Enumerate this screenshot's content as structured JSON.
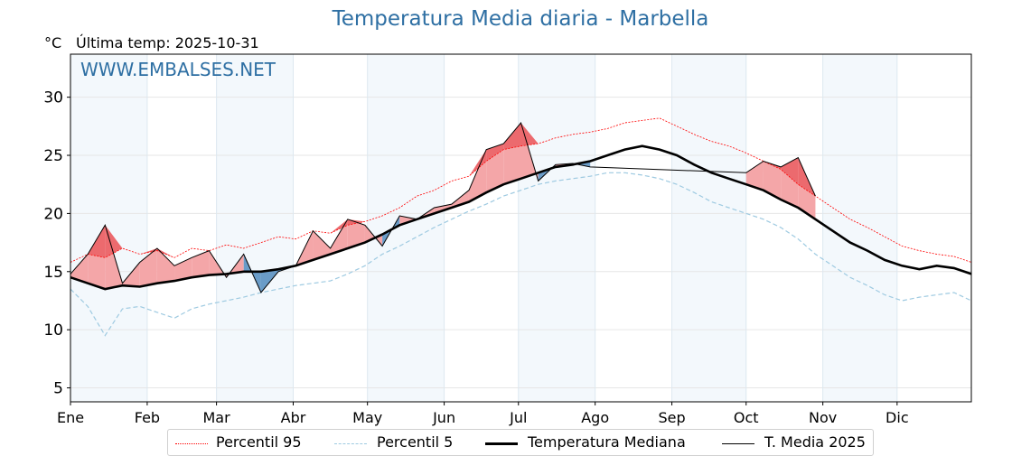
{
  "header": {
    "title": "Temperatura Media diaria - Marbella",
    "unit_label": "°C",
    "last_temp_label": "Última temp: 2025-10-31",
    "watermark": "WWW.EMBALSES.NET"
  },
  "legend": {
    "items": [
      {
        "label": "Percentil 95",
        "color": "#ff0000",
        "style": "dotted"
      },
      {
        "label": "Percentil 5",
        "color": "#9ecae1",
        "style": "dashed"
      },
      {
        "label": "Temperatura Mediana",
        "color": "#000000",
        "style": "solid-thick"
      },
      {
        "label": "T. Media 2025",
        "color": "#000000",
        "style": "solid-thin"
      }
    ]
  },
  "colors": {
    "title": "#2e6fa3",
    "above_median_fill": "#f4a6a8",
    "above_p95_fill": "#ec6a6e",
    "below_median_fill": "#6a9cc8",
    "month_band": "#f3f8fc",
    "grid": "#e6e6e6"
  },
  "chart_data": {
    "type": "line",
    "title": "Temperatura Media diaria - Marbella",
    "xlabel": "",
    "ylabel": "°C",
    "ylim": [
      3.8,
      33.7
    ],
    "xlim": [
      0,
      364
    ],
    "grid": true,
    "legend_position": "bottom",
    "yticks": [
      5,
      10,
      15,
      20,
      25,
      30
    ],
    "xticks": [
      {
        "day": 0,
        "label": "Ene"
      },
      {
        "day": 31,
        "label": "Feb"
      },
      {
        "day": 59,
        "label": "Mar"
      },
      {
        "day": 90,
        "label": "Abr"
      },
      {
        "day": 120,
        "label": "May"
      },
      {
        "day": 151,
        "label": "Jun"
      },
      {
        "day": 181,
        "label": "Jul"
      },
      {
        "day": 212,
        "label": "Ago"
      },
      {
        "day": 243,
        "label": "Sep"
      },
      {
        "day": 273,
        "label": "Oct"
      },
      {
        "day": 304,
        "label": "Nov"
      },
      {
        "day": 334,
        "label": "Dic"
      }
    ],
    "shaded_months": [
      [
        0,
        31
      ],
      [
        59,
        90
      ],
      [
        120,
        151
      ],
      [
        181,
        212
      ],
      [
        243,
        273
      ],
      [
        304,
        334
      ]
    ],
    "x": [
      0,
      7,
      14,
      21,
      28,
      35,
      42,
      49,
      56,
      63,
      70,
      77,
      84,
      91,
      98,
      105,
      112,
      119,
      126,
      133,
      140,
      147,
      154,
      161,
      168,
      175,
      182,
      189,
      196,
      203,
      210,
      217,
      224,
      231,
      238,
      245,
      252,
      259,
      266,
      273,
      280,
      287,
      294,
      301,
      308,
      315,
      322,
      329,
      336,
      343,
      350,
      357,
      364
    ],
    "series": [
      {
        "name": "Percentil 95",
        "values": [
          15.8,
          16.5,
          16.2,
          17.0,
          16.5,
          16.8,
          16.2,
          17.0,
          16.8,
          17.3,
          17.0,
          17.5,
          18.0,
          17.8,
          18.5,
          18.3,
          19.0,
          19.3,
          19.8,
          20.5,
          21.5,
          22.0,
          22.8,
          23.2,
          24.5,
          25.5,
          25.8,
          26.0,
          26.5,
          26.8,
          27.0,
          27.3,
          27.8,
          28.0,
          28.2,
          27.5,
          26.8,
          26.2,
          25.8,
          25.2,
          24.5,
          23.8,
          22.5,
          21.5,
          20.5,
          19.5,
          18.8,
          18.0,
          17.2,
          16.8,
          16.5,
          16.3,
          15.8
        ]
      },
      {
        "name": "Percentil 5",
        "values": [
          13.5,
          12.0,
          9.5,
          11.8,
          12.0,
          11.5,
          11.0,
          11.8,
          12.2,
          12.5,
          12.8,
          13.2,
          13.5,
          13.8,
          14.0,
          14.2,
          14.8,
          15.5,
          16.5,
          17.2,
          18.0,
          18.8,
          19.5,
          20.2,
          20.8,
          21.5,
          22.0,
          22.5,
          22.8,
          23.0,
          23.2,
          23.5,
          23.5,
          23.3,
          23.0,
          22.5,
          21.8,
          21.0,
          20.5,
          20.0,
          19.5,
          18.8,
          17.8,
          16.5,
          15.5,
          14.5,
          13.8,
          13.0,
          12.5,
          12.8,
          13.0,
          13.2,
          12.5
        ]
      },
      {
        "name": "Temperatura Mediana",
        "values": [
          14.5,
          14.0,
          13.5,
          13.8,
          13.7,
          14.0,
          14.2,
          14.5,
          14.7,
          14.8,
          15.0,
          15.0,
          15.2,
          15.5,
          16.0,
          16.5,
          17.0,
          17.5,
          18.2,
          19.0,
          19.5,
          20.0,
          20.5,
          21.0,
          21.8,
          22.5,
          23.0,
          23.5,
          24.0,
          24.2,
          24.5,
          25.0,
          25.5,
          25.8,
          25.5,
          25.0,
          24.2,
          23.5,
          23.0,
          22.5,
          22.0,
          21.2,
          20.5,
          19.5,
          18.5,
          17.5,
          16.8,
          16.0,
          15.5,
          15.2,
          15.5,
          15.3,
          14.8
        ]
      },
      {
        "name": "T. Media 2025",
        "values": [
          14.8,
          16.5,
          19.0,
          14.0,
          15.8,
          17.0,
          15.5,
          16.2,
          16.8,
          14.5,
          16.5,
          13.2,
          15.0,
          15.5,
          18.5,
          17.0,
          19.5,
          19.0,
          17.2,
          19.8,
          19.5,
          20.5,
          20.8,
          22.0,
          25.5,
          26.0,
          27.8,
          22.8,
          24.2,
          24.3,
          24.0,
          null,
          null,
          null,
          null,
          null,
          null,
          null,
          null,
          23.5,
          24.5,
          24.0,
          24.8,
          21.5,
          null,
          null,
          null,
          null,
          null,
          null,
          null,
          null,
          null
        ]
      }
    ]
  }
}
